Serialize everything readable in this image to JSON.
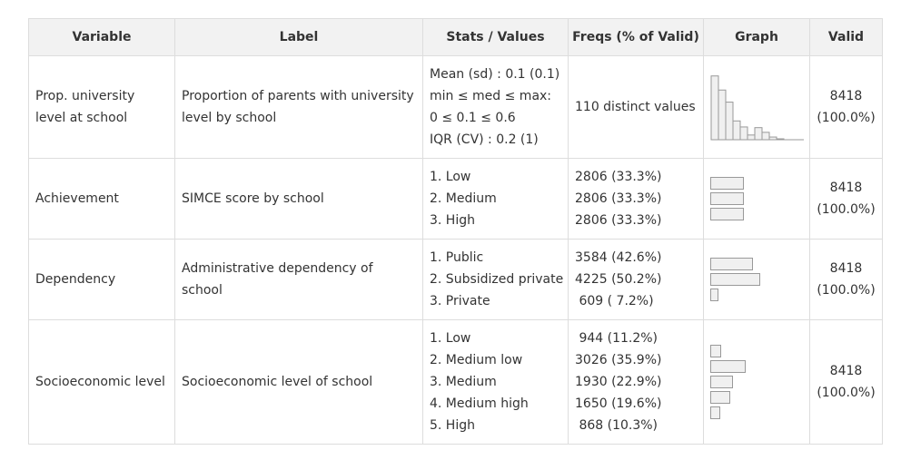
{
  "headers": {
    "variable": "Variable",
    "label": "Label",
    "stats": "Stats / Values",
    "freqs": "Freqs (% of Valid)",
    "graph": "Graph",
    "valid": "Valid"
  },
  "rows": [
    {
      "variable": "Prop. university level at school",
      "label": "Proportion of parents with university level by school",
      "stats": [
        "Mean (sd) : 0.1 (0.1)",
        "min ≤ med ≤ max:",
        "0 ≤ 0.1 ≤ 0.6",
        "IQR (CV) : 0.2 (1)"
      ],
      "freqs": [
        "110 distinct values"
      ],
      "valid_n": "8418",
      "valid_pct": "(100.0%)",
      "histogram": [
        0.95,
        0.74,
        0.56,
        0.28,
        0.19,
        0.07,
        0.18,
        0.11,
        0.04,
        0.01
      ]
    },
    {
      "variable": "Achievement",
      "label": "SIMCE score by school",
      "stats": [
        "1. Low",
        "2. Medium",
        "3. High"
      ],
      "freqs": [
        "2806 (33.3%)",
        "2806 (33.3%)",
        "2806 (33.3%)"
      ],
      "proportions": [
        33.3,
        33.3,
        33.3
      ],
      "valid_n": "8418",
      "valid_pct": "(100.0%)"
    },
    {
      "variable": "Dependency",
      "label": "Administrative dependency of school",
      "stats": [
        "1. Public",
        "2. Subsidized private",
        "3. Private"
      ],
      "freqs": [
        "3584 (42.6%)",
        "4225 (50.2%)",
        " 609 ( 7.2%)"
      ],
      "proportions": [
        42.6,
        50.2,
        7.2
      ],
      "valid_n": "8418",
      "valid_pct": "(100.0%)"
    },
    {
      "variable": "Socioeconomic level",
      "label": "Socioeconomic level of school",
      "stats": [
        "1. Low",
        "2. Medium low",
        "3. Medium",
        "4. Medium high",
        "5. High"
      ],
      "freqs": [
        " 944 (11.2%)",
        "3026 (35.9%)",
        "1930 (22.9%)",
        "1650 (19.6%)",
        " 868 (10.3%)"
      ],
      "proportions": [
        11.2,
        35.9,
        22.9,
        19.6,
        10.3
      ],
      "valid_n": "8418",
      "valid_pct": "(100.0%)"
    }
  ]
}
